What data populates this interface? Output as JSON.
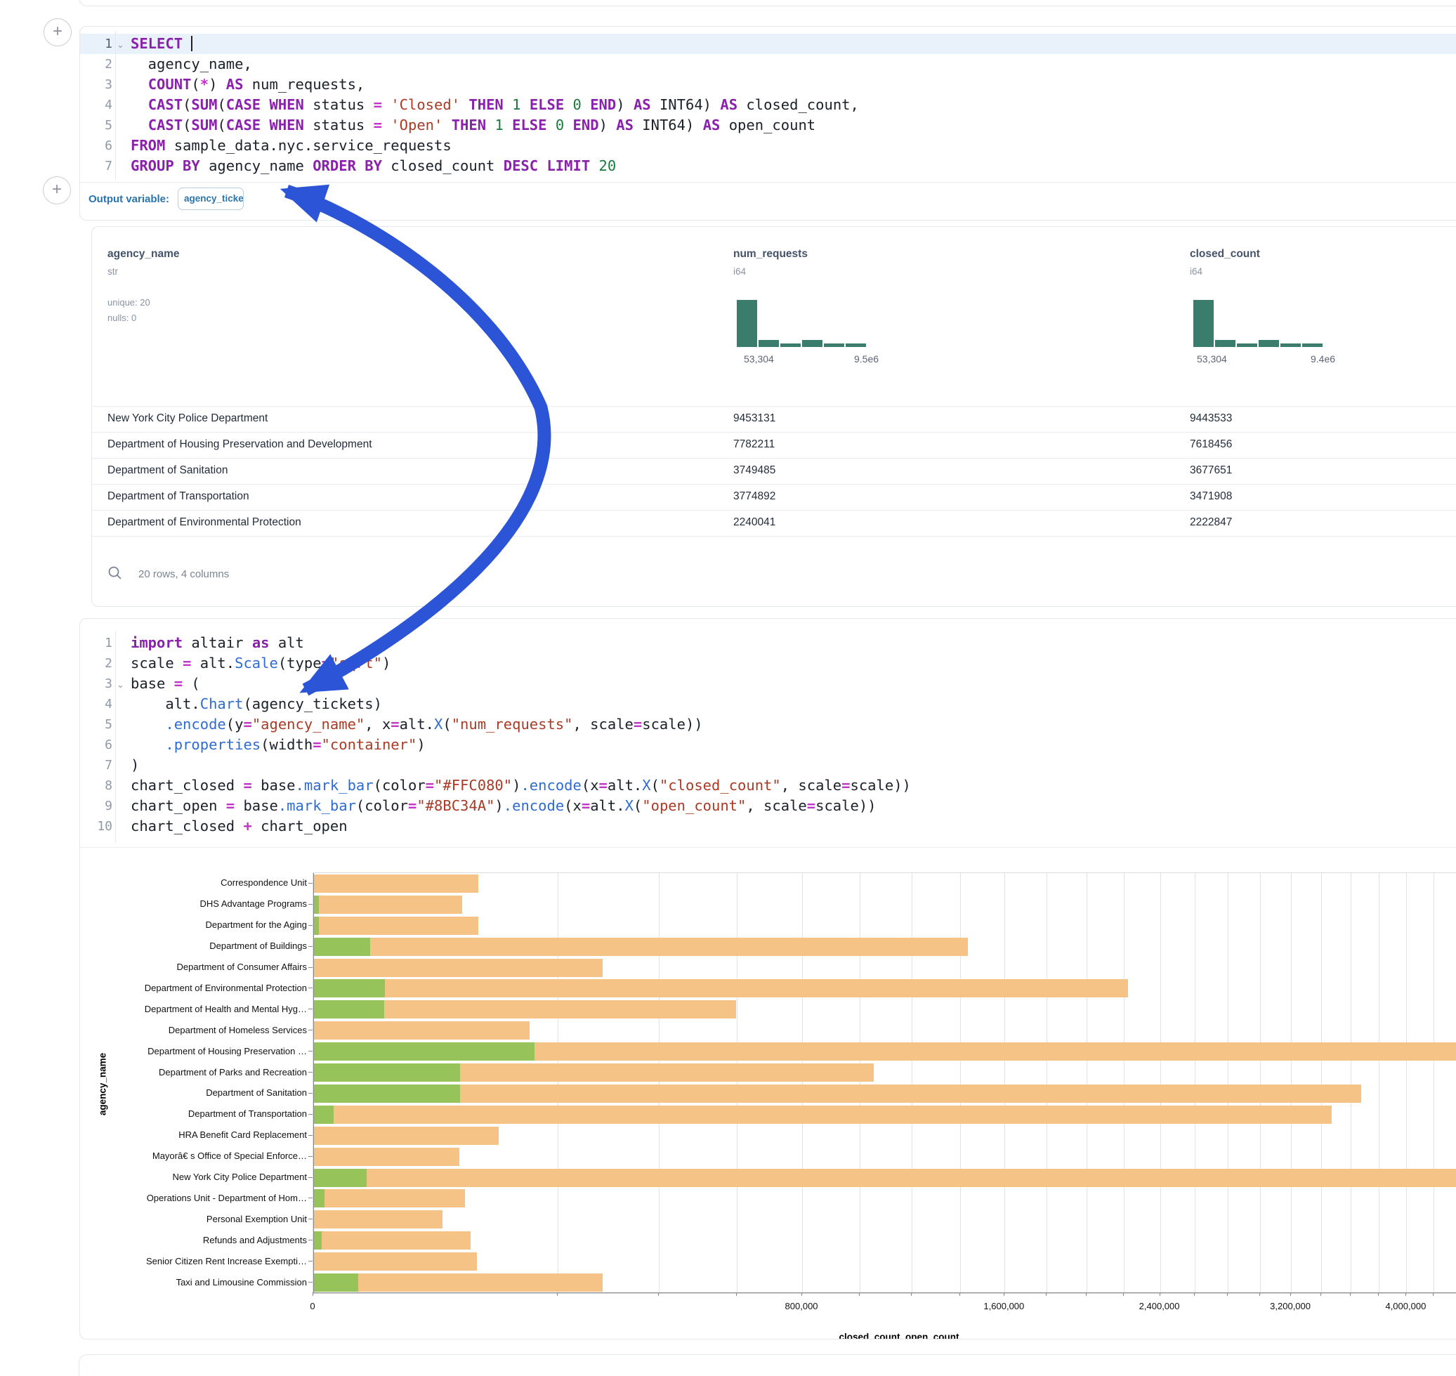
{
  "sql_cell": {
    "language": "sql",
    "lines": [
      {
        "n": "1",
        "chevron": true,
        "active": true,
        "tokens": [
          [
            "kw",
            "SELECT"
          ],
          [
            "pl",
            " "
          ],
          [
            "caret",
            ""
          ]
        ]
      },
      {
        "n": "2",
        "tokens": [
          [
            "pl",
            "  agency_name,"
          ]
        ]
      },
      {
        "n": "3",
        "tokens": [
          [
            "pl",
            "  "
          ],
          [
            "kw",
            "COUNT"
          ],
          [
            "pl",
            "("
          ],
          [
            "op",
            "*"
          ],
          [
            "pl",
            ") "
          ],
          [
            "kw",
            "AS"
          ],
          [
            "pl",
            " num_requests,"
          ]
        ]
      },
      {
        "n": "4",
        "tokens": [
          [
            "pl",
            "  "
          ],
          [
            "kw",
            "CAST"
          ],
          [
            "pl",
            "("
          ],
          [
            "kw",
            "SUM"
          ],
          [
            "pl",
            "("
          ],
          [
            "kw",
            "CASE"
          ],
          [
            "pl",
            " "
          ],
          [
            "kw",
            "WHEN"
          ],
          [
            "pl",
            " status "
          ],
          [
            "op",
            "="
          ],
          [
            "pl",
            " "
          ],
          [
            "str",
            "'Closed'"
          ],
          [
            "pl",
            " "
          ],
          [
            "kw",
            "THEN"
          ],
          [
            "pl",
            " "
          ],
          [
            "num",
            "1"
          ],
          [
            "pl",
            " "
          ],
          [
            "kw",
            "ELSE"
          ],
          [
            "pl",
            " "
          ],
          [
            "num",
            "0"
          ],
          [
            "pl",
            " "
          ],
          [
            "kw",
            "END"
          ],
          [
            "pl",
            ") "
          ],
          [
            "kw",
            "AS"
          ],
          [
            "pl",
            " INT64) "
          ],
          [
            "kw",
            "AS"
          ],
          [
            "pl",
            " closed_count,"
          ]
        ]
      },
      {
        "n": "5",
        "tokens": [
          [
            "pl",
            "  "
          ],
          [
            "kw",
            "CAST"
          ],
          [
            "pl",
            "("
          ],
          [
            "kw",
            "SUM"
          ],
          [
            "pl",
            "("
          ],
          [
            "kw",
            "CASE"
          ],
          [
            "pl",
            " "
          ],
          [
            "kw",
            "WHEN"
          ],
          [
            "pl",
            " status "
          ],
          [
            "op",
            "="
          ],
          [
            "pl",
            " "
          ],
          [
            "str",
            "'Open'"
          ],
          [
            "pl",
            " "
          ],
          [
            "kw",
            "THEN"
          ],
          [
            "pl",
            " "
          ],
          [
            "num",
            "1"
          ],
          [
            "pl",
            " "
          ],
          [
            "kw",
            "ELSE"
          ],
          [
            "pl",
            " "
          ],
          [
            "num",
            "0"
          ],
          [
            "pl",
            " "
          ],
          [
            "kw",
            "END"
          ],
          [
            "pl",
            ") "
          ],
          [
            "kw",
            "AS"
          ],
          [
            "pl",
            " INT64) "
          ],
          [
            "kw",
            "AS"
          ],
          [
            "pl",
            " open_count"
          ]
        ]
      },
      {
        "n": "6",
        "tokens": [
          [
            "kw",
            "FROM"
          ],
          [
            "pl",
            " sample_data.nyc.service_requests"
          ]
        ]
      },
      {
        "n": "7",
        "tokens": [
          [
            "kw",
            "GROUP BY"
          ],
          [
            "pl",
            " agency_name "
          ],
          [
            "kw",
            "ORDER BY"
          ],
          [
            "pl",
            " closed_count "
          ],
          [
            "kw",
            "DESC"
          ],
          [
            "pl",
            " "
          ],
          [
            "kw",
            "LIMIT"
          ],
          [
            "pl",
            " "
          ],
          [
            "num",
            "20"
          ]
        ]
      }
    ]
  },
  "output_variable": {
    "label": "Output variable:",
    "value": "agency_tickets"
  },
  "table": {
    "columns": [
      {
        "name": "agency_name",
        "type": "str",
        "meta": [
          "unique: 20",
          "nulls: 0"
        ]
      },
      {
        "name": "num_requests",
        "type": "i64",
        "hist": {
          "bins": [
            13,
            2,
            1,
            2,
            1,
            1
          ],
          "min_label": "53,304",
          "max_label": "9.5e6"
        }
      },
      {
        "name": "closed_count",
        "type": "i64",
        "hist": {
          "bins": [
            13,
            2,
            1,
            2,
            1,
            1
          ],
          "min_label": "53,304",
          "max_label": "9.4e6"
        }
      }
    ],
    "rows": [
      [
        "New York City Police Department",
        "9453131",
        "9443533"
      ],
      [
        "Department of Housing Preservation and Development",
        "7782211",
        "7618456"
      ],
      [
        "Department of Sanitation",
        "3749485",
        "3677651"
      ],
      [
        "Department of Transportation",
        "3774892",
        "3471908"
      ],
      [
        "Department of Environmental Protection",
        "2240041",
        "2222847"
      ]
    ],
    "footer": "20 rows, 4 columns"
  },
  "python_cell": {
    "language": "python",
    "lines": [
      {
        "n": "1",
        "tokens": [
          [
            "kw",
            "import"
          ],
          [
            "pl",
            " altair "
          ],
          [
            "kw",
            "as"
          ],
          [
            "pl",
            " alt"
          ]
        ]
      },
      {
        "n": "2",
        "tokens": [
          [
            "pl",
            "scale "
          ],
          [
            "op",
            "="
          ],
          [
            "pl",
            " alt."
          ],
          [
            "fn",
            "Scale"
          ],
          [
            "pl",
            "(type"
          ],
          [
            "op",
            "="
          ],
          [
            "str",
            "\"sqrt\""
          ],
          [
            "pl",
            ")"
          ]
        ]
      },
      {
        "n": "3",
        "chevron": true,
        "tokens": [
          [
            "pl",
            "base "
          ],
          [
            "op",
            "="
          ],
          [
            "pl",
            " ("
          ]
        ]
      },
      {
        "n": "4",
        "tokens": [
          [
            "pl",
            "    alt."
          ],
          [
            "fn",
            "Chart"
          ],
          [
            "pl",
            "(agency_tickets)"
          ]
        ]
      },
      {
        "n": "5",
        "tokens": [
          [
            "pl",
            "    "
          ],
          [
            "fn",
            ".encode"
          ],
          [
            "pl",
            "(y"
          ],
          [
            "op",
            "="
          ],
          [
            "str",
            "\"agency_name\""
          ],
          [
            "pl",
            ", x"
          ],
          [
            "op",
            "="
          ],
          [
            "pl",
            "alt."
          ],
          [
            "fn",
            "X"
          ],
          [
            "pl",
            "("
          ],
          [
            "str",
            "\"num_requests\""
          ],
          [
            "pl",
            ", scale"
          ],
          [
            "op",
            "="
          ],
          [
            "pl",
            "scale))"
          ]
        ]
      },
      {
        "n": "6",
        "tokens": [
          [
            "pl",
            "    "
          ],
          [
            "fn",
            ".properties"
          ],
          [
            "pl",
            "(width"
          ],
          [
            "op",
            "="
          ],
          [
            "str",
            "\"container\""
          ],
          [
            "pl",
            ")"
          ]
        ]
      },
      {
        "n": "7",
        "tokens": [
          [
            "pl",
            ")"
          ]
        ]
      },
      {
        "n": "8",
        "tokens": [
          [
            "pl",
            "chart_closed "
          ],
          [
            "op",
            "="
          ],
          [
            "pl",
            " base"
          ],
          [
            "fn",
            ".mark_bar"
          ],
          [
            "pl",
            "(color"
          ],
          [
            "op",
            "="
          ],
          [
            "str",
            "\"#FFC080\""
          ],
          [
            "pl",
            ")"
          ],
          [
            "fn",
            ".encode"
          ],
          [
            "pl",
            "(x"
          ],
          [
            "op",
            "="
          ],
          [
            "pl",
            "alt."
          ],
          [
            "fn",
            "X"
          ],
          [
            "pl",
            "("
          ],
          [
            "str",
            "\"closed_count\""
          ],
          [
            "pl",
            ", scale"
          ],
          [
            "op",
            "="
          ],
          [
            "pl",
            "scale))"
          ]
        ]
      },
      {
        "n": "9",
        "tokens": [
          [
            "pl",
            "chart_open "
          ],
          [
            "op",
            "="
          ],
          [
            "pl",
            " base"
          ],
          [
            "fn",
            ".mark_bar"
          ],
          [
            "pl",
            "(color"
          ],
          [
            "op",
            "="
          ],
          [
            "str",
            "\"#8BC34A\""
          ],
          [
            "pl",
            ")"
          ],
          [
            "fn",
            ".encode"
          ],
          [
            "pl",
            "(x"
          ],
          [
            "op",
            "="
          ],
          [
            "pl",
            "alt."
          ],
          [
            "fn",
            "X"
          ],
          [
            "pl",
            "("
          ],
          [
            "str",
            "\"open_count\""
          ],
          [
            "pl",
            ", scale"
          ],
          [
            "op",
            "="
          ],
          [
            "pl",
            "scale))"
          ]
        ]
      },
      {
        "n": "10",
        "tokens": [
          [
            "pl",
            "chart_closed "
          ],
          [
            "op",
            "+"
          ],
          [
            "pl",
            " chart_open"
          ]
        ]
      }
    ]
  },
  "chart_data": {
    "type": "bar",
    "orientation": "horizontal",
    "x_scale": "sqrt",
    "grid": true,
    "grid_step": 200000,
    "xlabel": "closed_count, open_count",
    "ylabel": "agency_name",
    "x_ticks": [
      {
        "value": 0,
        "label": "0"
      },
      {
        "value": 800000,
        "label": "800,000"
      },
      {
        "value": 1600000,
        "label": "1,600,000"
      },
      {
        "value": 2400000,
        "label": "2,400,000"
      },
      {
        "value": 3200000,
        "label": "3,200,000"
      },
      {
        "value": 4000000,
        "label": "4,000,000"
      }
    ],
    "categories": [
      "Correspondence Unit",
      "DHS Advantage Programs",
      "Department for the Aging",
      "Department of Buildings",
      "Department of Consumer Affairs",
      "Department of Environmental Protection",
      "Department of Health and Mental Hyg…",
      "Department of Homeless Services",
      "Department of Housing Preservation …",
      "Department of Parks and Recreation",
      "Department of Sanitation",
      "Department of Transportation",
      "HRA Benefit Card Replacement",
      "Mayorâ€ s Office of Special Enforce…",
      "New York City Police Department",
      "Operations Unit - Department of Hom…",
      "Personal Exemption Unit",
      "Refunds and Adjustments",
      "Senior Citizen Rent Increase Exempti…",
      "Taxi and Limousine Commission"
    ],
    "series": [
      {
        "name": "closed_count",
        "color": "#F6C386",
        "values": [
          91000,
          74000,
          91000,
          1435000,
          280000,
          2222847,
          599000,
          157000,
          7618456,
          1052000,
          3677651,
          3471908,
          115000,
          71500,
          9443533,
          77000,
          56000,
          83000,
          90000,
          280000
        ]
      },
      {
        "name": "open_count",
        "color": "#96C45B",
        "values": [
          0,
          110,
          110,
          10800,
          0,
          17194,
          16800,
          0,
          163755,
          72200,
          71834,
          1400,
          0,
          0,
          9598,
          420,
          0,
          240,
          0,
          6800
        ]
      }
    ]
  },
  "annotation": {
    "arrow_color": "#2B55D6"
  },
  "icons": {
    "search": "search-icon",
    "plus": "plus-icon",
    "chevron": "chevron-down-icon"
  }
}
